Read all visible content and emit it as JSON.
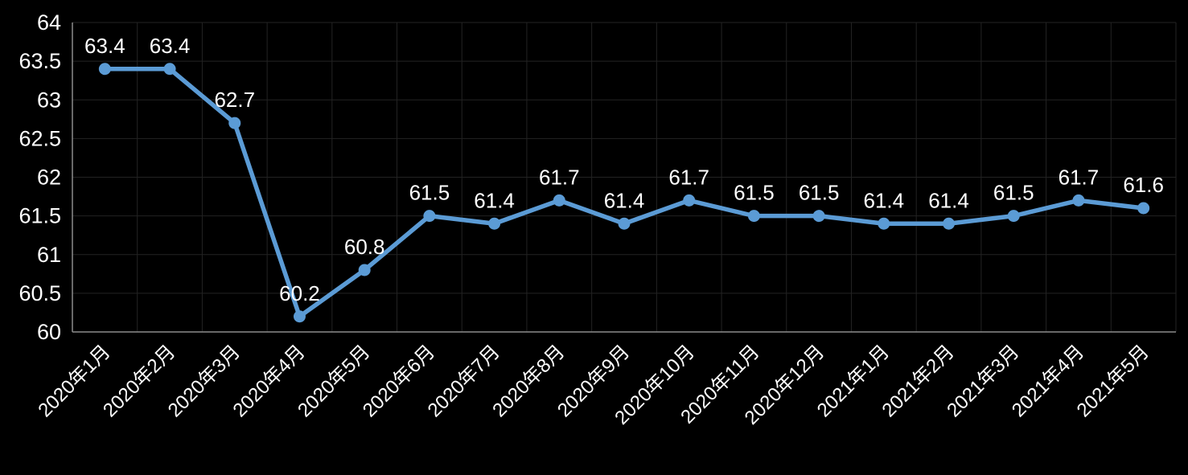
{
  "chart_data": {
    "type": "line",
    "title": "",
    "xlabel": "",
    "ylabel": "",
    "categories": [
      "2020年1月",
      "2020年2月",
      "2020年3月",
      "2020年4月",
      "2020年5月",
      "2020年6月",
      "2020年7月",
      "2020年8月",
      "2020年9月",
      "2020年10月",
      "2020年11月",
      "2020年12月",
      "2021年1月",
      "2021年2月",
      "2021年3月",
      "2021年4月",
      "2021年5月"
    ],
    "values": [
      63.4,
      63.4,
      62.7,
      60.2,
      60.8,
      61.5,
      61.4,
      61.7,
      61.4,
      61.7,
      61.5,
      61.5,
      61.4,
      61.4,
      61.5,
      61.7,
      61.6
    ],
    "data_labels": [
      "63.4",
      "63.4",
      "62.7",
      "60.2",
      "60.8",
      "61.5",
      "61.4",
      "61.7",
      "61.4",
      "61.7",
      "61.5",
      "61.5",
      "61.4",
      "61.4",
      "61.5",
      "61.7",
      "61.6"
    ],
    "ylim": [
      60,
      64
    ],
    "ytick_step": 0.5,
    "ytick_labels": [
      "60",
      "60.5",
      "61",
      "61.5",
      "62",
      "62.5",
      "63",
      "63.5",
      "64"
    ],
    "grid": true,
    "legend_position": "none",
    "colors": {
      "line": "#5B9BD5",
      "marker": "#5B9BD5",
      "background": "#000000",
      "text": "#FFFFFF",
      "grid": "#232323",
      "axis": "#8C8C8C"
    }
  }
}
